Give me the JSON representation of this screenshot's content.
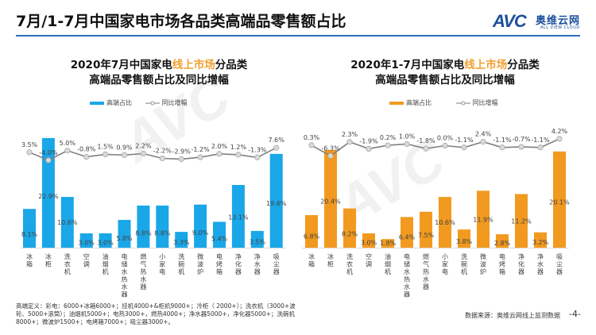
{
  "page": {
    "title": "7月/1-7月中国家电市场各品类高端品零售额占比",
    "logo": {
      "mark": "AVC",
      "name_cn": "奥维云网",
      "name_en": "ALL VIEW CLOUD"
    },
    "footnote": "高端定义：彩电：6000+冰箱6000+；挂机4000+&柜机9000+；冷柜（ 2000+）；洗衣机（3000+波轮、5000+滚筒）；油烟机5000+；电热3000+，燃热4000+；净水器5000+，净化器5000+；洗碗机8000+；微波炉1500+；电烤箱7000+；吸尘器3000+。",
    "source": "数据来源：奥维云网线上监测数据",
    "page_number": "-4-"
  },
  "colors": {
    "left_bar": "#1aa7e8",
    "right_bar": "#f29a1f",
    "line": "#7f7f7f",
    "marker_fill": "#d9d9d9",
    "title_rule": "#2e6fb8",
    "highlight": "#f0a030"
  },
  "chart_data": [
    {
      "type": "bar",
      "title_parts": [
        "2020年7月中国家电",
        "线上市场",
        "分品类",
        "高端品零售额占比及同比增幅"
      ],
      "title": "2020年7月中国家电线上市场分品类高端品零售额占比及同比增幅",
      "legend": [
        "高端占比",
        "同比增幅"
      ],
      "legend_position": "top-left",
      "categories": [
        "冰箱",
        "冰柜",
        "洗衣机",
        "空调",
        "油烟机",
        "电储水热水器",
        "燃气热水器",
        "小家电",
        "洗碗机",
        "微波炉",
        "电烤箱",
        "净化器",
        "净水器",
        "吸尘器"
      ],
      "series": [
        {
          "name": "高端占比",
          "type": "bar",
          "unit": "%",
          "values": [
            8.1,
            22.9,
            10.6,
            3.0,
            3.0,
            5.8,
            8.8,
            8.8,
            3.3,
            9.0,
            5.4,
            13.1,
            3.5,
            19.6
          ]
        },
        {
          "name": "同比增幅",
          "type": "line",
          "unit": "%",
          "values": [
            3.5,
            -4.0,
            5.0,
            -0.8,
            1.5,
            0.9,
            2.2,
            -2.2,
            -2.9,
            -1.2,
            2.0,
            1.2,
            -1.3,
            7.6
          ]
        }
      ],
      "bar_labels": [
        "8.1%",
        "22.9%",
        "10.6%",
        "3.0%",
        "3.0%",
        "5.8%",
        "8.8%",
        "8.8%",
        "3.3%",
        "9.0%",
        "5.4%",
        "13.1%",
        "3.5%",
        "19.6%"
      ],
      "line_labels": [
        "3.5%",
        "-4.0%",
        "5.0%",
        "-0.8%",
        "1.5%",
        "0.9%",
        "2.2%",
        "-2.2%",
        "-2.9%",
        "-1.2%",
        "2.0%",
        "1.2%",
        "-1.3%",
        "7.6%"
      ],
      "grid": false
    },
    {
      "type": "bar",
      "title_parts": [
        "2020年1-7月中国家电",
        "线上市场",
        "分品类",
        "高端品零售额占比及同比增幅"
      ],
      "title": "2020年1-7月中国家电线上市场分品类高端品零售额占比及同比增幅",
      "legend": [
        "高端占比",
        "同比增幅"
      ],
      "legend_position": "top-left",
      "categories": [
        "冰箱",
        "冰柜",
        "洗衣机",
        "空调",
        "油烟机",
        "电储水热水器",
        "燃气热水器",
        "小家电",
        "洗碗机",
        "微波炉",
        "电烤箱",
        "净化器",
        "净水器",
        "吸尘器"
      ],
      "series": [
        {
          "name": "高端占比",
          "type": "bar",
          "unit": "%",
          "values": [
            6.8,
            20.4,
            8.2,
            3.0,
            1.8,
            6.4,
            7.5,
            10.6,
            3.8,
            11.9,
            2.8,
            11.2,
            3.2,
            20.1
          ]
        },
        {
          "name": "同比增幅",
          "type": "line",
          "unit": "%",
          "values": [
            0.3,
            -6.3,
            2.3,
            -1.9,
            0.2,
            1.0,
            -1.8,
            0.0,
            -1.1,
            2.4,
            -1.1,
            -0.7,
            -1.1,
            4.2
          ]
        }
      ],
      "bar_labels": [
        "6.8%",
        "20.4%",
        "8.2%",
        "3.0%",
        "1.8%",
        "6.4%",
        "7.5%",
        "10.6%",
        "3.8%",
        "11.9%",
        "2.8%",
        "11.2%",
        "3.2%",
        "20.1%"
      ],
      "line_labels": [
        "0.3%",
        "-6.3%",
        "2.3%",
        "-1.9%",
        "0.2%",
        "1.0%",
        "-1.8%",
        "0.0%",
        "-1.1%",
        "2.4%",
        "-1.1%",
        "-0.7%",
        "-1.1%",
        "4.2%"
      ],
      "grid": false
    }
  ]
}
